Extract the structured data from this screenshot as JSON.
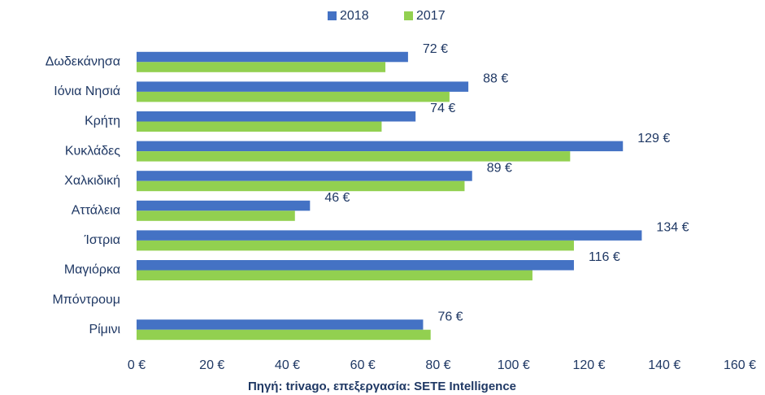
{
  "chart_data": {
    "type": "bar",
    "orientation": "horizontal",
    "categories": [
      "Δωδεκάνησα",
      "Ιόνια Νησιά",
      "Κρήτη",
      "Κυκλάδες",
      "Χαλκιδική",
      "Αττάλεια",
      "Ίστρια",
      "Μαγιόρκα",
      "Μπόντρουμ",
      "Ρίμινι"
    ],
    "series": [
      {
        "name": "2018",
        "color": "#4472c4",
        "values": [
          72,
          88,
          74,
          129,
          89,
          46,
          134,
          116,
          null,
          76
        ],
        "value_labels": [
          "72 €",
          "88 €",
          "74 €",
          "129 €",
          "89 €",
          "46 €",
          "134 €",
          "116 €",
          null,
          "76 €"
        ]
      },
      {
        "name": "2017",
        "color": "#92d050",
        "values": [
          66,
          83,
          65,
          115,
          87,
          42,
          116,
          105,
          null,
          78
        ]
      }
    ],
    "xlim": [
      0,
      160
    ],
    "xticks": [
      {
        "value": 0,
        "label": "0 €"
      },
      {
        "value": 20,
        "label": "20 €"
      },
      {
        "value": 40,
        "label": "40 €"
      },
      {
        "value": 60,
        "label": "60 €"
      },
      {
        "value": 80,
        "label": "80 €"
      },
      {
        "value": 100,
        "label": "100 €"
      },
      {
        "value": 120,
        "label": "120 €"
      },
      {
        "value": 140,
        "label": "140 €"
      },
      {
        "value": 160,
        "label": "160 €"
      }
    ],
    "legend": "top",
    "note": "Πηγή: trivago, επεξεργασία: SETE Intelligence"
  }
}
